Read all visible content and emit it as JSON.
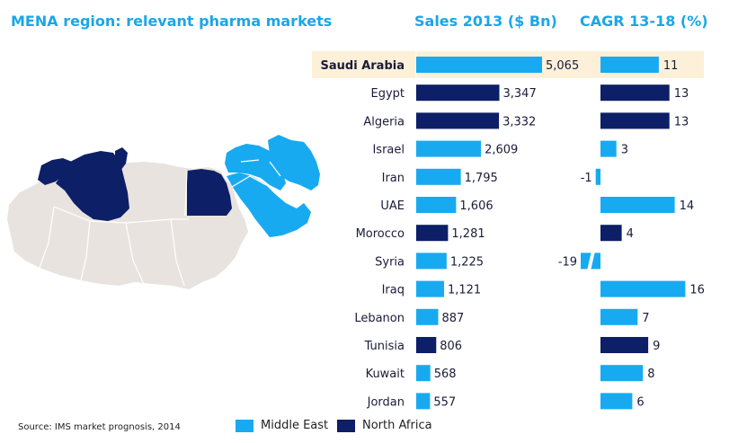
{
  "titles": {
    "main": "MENA region: relevant pharma markets",
    "sales": "Sales 2013 ($ Bn)",
    "cagr": "CAGR 13-18 (%)"
  },
  "source": "Source: IMS market prognosis, 2014",
  "legend": [
    {
      "label": "Middle East",
      "color": "#18aaf0"
    },
    {
      "label": "North Africa",
      "color": "#0d1f66"
    }
  ],
  "highlight_color": "#fcf1d8",
  "map_colors": {
    "land": "#e8e3df",
    "middle_east": "#18aaf0",
    "north_africa": "#0d1f66"
  },
  "chart_data": {
    "type": "bar",
    "categories": [
      "Saudi Arabia",
      "Egypt",
      "Algeria",
      "Israel",
      "Iran",
      "UAE",
      "Morocco",
      "Syria",
      "Iraq",
      "Lebanon",
      "Tunisia",
      "Kuwait",
      "Jordan"
    ],
    "regions": [
      "Middle East",
      "North Africa",
      "North Africa",
      "Middle East",
      "Middle East",
      "Middle East",
      "North Africa",
      "Middle East",
      "Middle East",
      "Middle East",
      "North Africa",
      "Middle East",
      "Middle East"
    ],
    "highlighted": "Saudi Arabia",
    "series": [
      {
        "name": "Sales 2013 ($ Bn)",
        "values": [
          5065,
          3347,
          3332,
          2609,
          1795,
          1606,
          1281,
          1225,
          1121,
          887,
          806,
          568,
          557
        ],
        "labels": [
          "5,065",
          "3,347",
          "3,332",
          "2,609",
          "1,795",
          "1,606",
          "1,281",
          "1,225",
          "1,121",
          "887",
          "806",
          "568",
          "557"
        ]
      },
      {
        "name": "CAGR 13-18 (%)",
        "values": [
          11,
          13,
          13,
          3,
          -1,
          14,
          4,
          -19,
          16,
          7,
          9,
          8,
          6
        ],
        "labels": [
          "11",
          "13",
          "13",
          "3",
          "-1",
          "14",
          "4",
          "-19",
          "16",
          "7",
          "9",
          "8",
          "6"
        ],
        "broken_axis": [
          "Syria"
        ]
      }
    ]
  }
}
